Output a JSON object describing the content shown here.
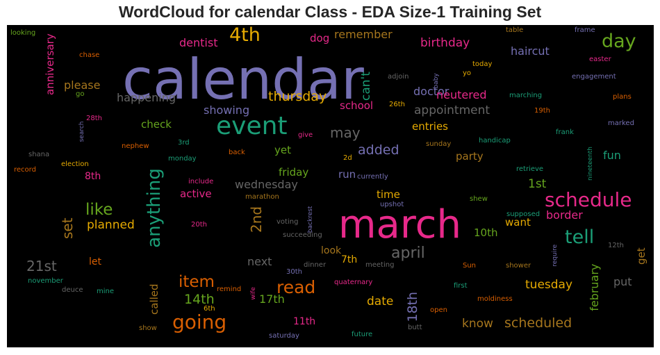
{
  "chart_data": {
    "type": "wordcloud",
    "title": "WordCloud for calendar Class - EDA Size-1 Training Set",
    "background": "#000000",
    "palette": [
      "#7570b3",
      "#e7298a",
      "#1b9e77",
      "#d95f02",
      "#66a61e",
      "#e6ab02",
      "#a6761d",
      "#666666"
    ],
    "words": [
      {
        "text": "calendar",
        "weight": 1.0,
        "color": "#7570b3"
      },
      {
        "text": "march",
        "weight": 0.78,
        "color": "#e7298a"
      },
      {
        "text": "event",
        "weight": 0.55,
        "color": "#1b9e77"
      },
      {
        "text": "schedule",
        "weight": 0.46,
        "color": "#e7298a"
      },
      {
        "text": "going",
        "weight": 0.45,
        "color": "#d95f02"
      },
      {
        "text": "anything",
        "weight": 0.4,
        "color": "#1b9e77"
      },
      {
        "text": "4th",
        "weight": 0.42,
        "color": "#e6ab02"
      },
      {
        "text": "day",
        "weight": 0.4,
        "color": "#66a61e"
      },
      {
        "text": "tell",
        "weight": 0.42,
        "color": "#1b9e77"
      },
      {
        "text": "read",
        "weight": 0.38,
        "color": "#d95f02"
      },
      {
        "text": "item",
        "weight": 0.36,
        "color": "#d95f02"
      },
      {
        "text": "like",
        "weight": 0.34,
        "color": "#66a61e"
      },
      {
        "text": "april",
        "weight": 0.33,
        "color": "#666666"
      },
      {
        "text": "2nd",
        "weight": 0.3,
        "color": "#a6761d"
      },
      {
        "text": "may",
        "weight": 0.3,
        "color": "#666666"
      },
      {
        "text": "scheduled",
        "weight": 0.3,
        "color": "#a6761d"
      },
      {
        "text": "21st",
        "weight": 0.28,
        "color": "#666666"
      },
      {
        "text": "set",
        "weight": 0.28,
        "color": "#a6761d"
      },
      {
        "text": "added",
        "weight": 0.28,
        "color": "#7570b3"
      },
      {
        "text": "thursday",
        "weight": 0.28,
        "color": "#e6ab02"
      },
      {
        "text": "14th",
        "weight": 0.27,
        "color": "#66a61e"
      },
      {
        "text": "18th",
        "weight": 0.27,
        "color": "#7570b3"
      },
      {
        "text": "tuesday",
        "weight": 0.26,
        "color": "#e6ab02"
      },
      {
        "text": "birthday",
        "weight": 0.26,
        "color": "#e7298a"
      },
      {
        "text": "appointment",
        "weight": 0.25,
        "color": "#666666"
      },
      {
        "text": "know",
        "weight": 0.25,
        "color": "#a6761d"
      },
      {
        "text": "february",
        "weight": 0.25,
        "color": "#66a61e"
      },
      {
        "text": "planned",
        "weight": 0.25,
        "color": "#e6ab02"
      },
      {
        "text": "17th",
        "weight": 0.24,
        "color": "#66a61e"
      },
      {
        "text": "happening",
        "weight": 0.24,
        "color": "#666666"
      },
      {
        "text": "date",
        "weight": 0.24,
        "color": "#e6ab02"
      },
      {
        "text": "wednesday",
        "weight": 0.24,
        "color": "#666666"
      },
      {
        "text": "haircut",
        "weight": 0.24,
        "color": "#7570b3"
      },
      {
        "text": "remember",
        "weight": 0.24,
        "color": "#a6761d"
      },
      {
        "text": "showing",
        "weight": 0.24,
        "color": "#7570b3"
      },
      {
        "text": "dentist",
        "weight": 0.23,
        "color": "#e7298a"
      },
      {
        "text": "doctor",
        "weight": 0.23,
        "color": "#7570b3"
      },
      {
        "text": "neutered",
        "weight": 0.23,
        "color": "#e7298a"
      },
      {
        "text": "can't",
        "weight": 0.23,
        "color": "#1b9e77"
      },
      {
        "text": "anniversary",
        "weight": 0.23,
        "color": "#e7298a"
      },
      {
        "text": "please",
        "weight": 0.23,
        "color": "#a6761d"
      },
      {
        "text": "called",
        "weight": 0.22,
        "color": "#a6761d"
      },
      {
        "text": "next",
        "weight": 0.22,
        "color": "#666666"
      },
      {
        "text": "put",
        "weight": 0.22,
        "color": "#666666"
      },
      {
        "text": "border",
        "weight": 0.22,
        "color": "#e7298a"
      },
      {
        "text": "1st",
        "weight": 0.22,
        "color": "#66a61e"
      },
      {
        "text": "fun",
        "weight": 0.22,
        "color": "#1b9e77"
      },
      {
        "text": "entries",
        "weight": 0.22,
        "color": "#e6ab02"
      },
      {
        "text": "dog",
        "weight": 0.22,
        "color": "#e7298a"
      },
      {
        "text": "check",
        "weight": 0.21,
        "color": "#66a61e"
      },
      {
        "text": "active",
        "weight": 0.21,
        "color": "#e7298a"
      },
      {
        "text": "want",
        "weight": 0.21,
        "color": "#e6ab02"
      },
      {
        "text": "10th",
        "weight": 0.21,
        "color": "#66a61e"
      },
      {
        "text": "get",
        "weight": 0.21,
        "color": "#a6761d"
      },
      {
        "text": "school",
        "weight": 0.21,
        "color": "#e7298a"
      },
      {
        "text": "friday",
        "weight": 0.21,
        "color": "#66a61e"
      },
      {
        "text": "yet",
        "weight": 0.21,
        "color": "#66a61e"
      },
      {
        "text": "party",
        "weight": 0.21,
        "color": "#a6761d"
      },
      {
        "text": "run",
        "weight": 0.21,
        "color": "#7570b3"
      },
      {
        "text": "time",
        "weight": 0.2,
        "color": "#e6ab02"
      },
      {
        "text": "look",
        "weight": 0.2,
        "color": "#a6761d"
      },
      {
        "text": "7th",
        "weight": 0.2,
        "color": "#e6ab02"
      },
      {
        "text": "11th",
        "weight": 0.2,
        "color": "#e7298a"
      },
      {
        "text": "8th",
        "weight": 0.2,
        "color": "#e7298a"
      },
      {
        "text": "let",
        "weight": 0.2,
        "color": "#d95f02"
      },
      {
        "text": "looking",
        "weight": 0.12,
        "color": "#66a61e"
      },
      {
        "text": "chase",
        "weight": 0.12,
        "color": "#d95f02"
      },
      {
        "text": "go",
        "weight": 0.12,
        "color": "#66a61e"
      },
      {
        "text": "28th",
        "weight": 0.12,
        "color": "#e7298a"
      },
      {
        "text": "search",
        "weight": 0.12,
        "color": "#7570b3"
      },
      {
        "text": "shana",
        "weight": 0.12,
        "color": "#666666"
      },
      {
        "text": "record",
        "weight": 0.12,
        "color": "#d95f02"
      },
      {
        "text": "nephew",
        "weight": 0.12,
        "color": "#d95f02"
      },
      {
        "text": "3rd",
        "weight": 0.12,
        "color": "#1b9e77"
      },
      {
        "text": "election",
        "weight": 0.12,
        "color": "#e6ab02"
      },
      {
        "text": "monday",
        "weight": 0.12,
        "color": "#1b9e77"
      },
      {
        "text": "give",
        "weight": 0.12,
        "color": "#e7298a"
      },
      {
        "text": "back",
        "weight": 0.12,
        "color": "#d95f02"
      },
      {
        "text": "include",
        "weight": 0.12,
        "color": "#e7298a"
      },
      {
        "text": "marathon",
        "weight": 0.12,
        "color": "#a6761d"
      },
      {
        "text": "backrest",
        "weight": 0.12,
        "color": "#7570b3"
      },
      {
        "text": "20th",
        "weight": 0.12,
        "color": "#e7298a"
      },
      {
        "text": "voting",
        "weight": 0.12,
        "color": "#666666"
      },
      {
        "text": "succeeding",
        "weight": 0.12,
        "color": "#666666"
      },
      {
        "text": "november",
        "weight": 0.12,
        "color": "#1b9e77"
      },
      {
        "text": "deuce",
        "weight": 0.12,
        "color": "#666666"
      },
      {
        "text": "mine",
        "weight": 0.12,
        "color": "#1b9e77"
      },
      {
        "text": "remind",
        "weight": 0.12,
        "color": "#d95f02"
      },
      {
        "text": "wife",
        "weight": 0.12,
        "color": "#e7298a"
      },
      {
        "text": "6th",
        "weight": 0.12,
        "color": "#e6ab02"
      },
      {
        "text": "show",
        "weight": 0.12,
        "color": "#a6761d"
      },
      {
        "text": "30th",
        "weight": 0.12,
        "color": "#7570b3"
      },
      {
        "text": "dinner",
        "weight": 0.12,
        "color": "#666666"
      },
      {
        "text": "meeting",
        "weight": 0.12,
        "color": "#666666"
      },
      {
        "text": "quaternary",
        "weight": 0.12,
        "color": "#e7298a"
      },
      {
        "text": "saturday",
        "weight": 0.12,
        "color": "#7570b3"
      },
      {
        "text": "future",
        "weight": 0.12,
        "color": "#1b9e77"
      },
      {
        "text": "butt",
        "weight": 0.12,
        "color": "#666666"
      },
      {
        "text": "open",
        "weight": 0.12,
        "color": "#d95f02"
      },
      {
        "text": "first",
        "weight": 0.12,
        "color": "#1b9e77"
      },
      {
        "text": "moldiness",
        "weight": 0.12,
        "color": "#d95f02"
      },
      {
        "text": "Sun",
        "weight": 0.12,
        "color": "#d95f02"
      },
      {
        "text": "shower",
        "weight": 0.12,
        "color": "#a6761d"
      },
      {
        "text": "require",
        "weight": 0.12,
        "color": "#7570b3"
      },
      {
        "text": "12th",
        "weight": 0.12,
        "color": "#666666"
      },
      {
        "text": "shew",
        "weight": 0.12,
        "color": "#66a61e"
      },
      {
        "text": "supposed",
        "weight": 0.12,
        "color": "#1b9e77"
      },
      {
        "text": "upshot",
        "weight": 0.12,
        "color": "#7570b3"
      },
      {
        "text": "currently",
        "weight": 0.12,
        "color": "#7570b3"
      },
      {
        "text": "2d",
        "weight": 0.12,
        "color": "#e6ab02"
      },
      {
        "text": "retrieve",
        "weight": 0.12,
        "color": "#1b9e77"
      },
      {
        "text": "nineteenth",
        "weight": 0.12,
        "color": "#1b9e77"
      },
      {
        "text": "handicap",
        "weight": 0.12,
        "color": "#1b9e77"
      },
      {
        "text": "sunday",
        "weight": 0.12,
        "color": "#a6761d"
      },
      {
        "text": "frank",
        "weight": 0.12,
        "color": "#1b9e77"
      },
      {
        "text": "marked",
        "weight": 0.12,
        "color": "#7570b3"
      },
      {
        "text": "19th",
        "weight": 0.12,
        "color": "#d95f02"
      },
      {
        "text": "plans",
        "weight": 0.12,
        "color": "#d95f02"
      },
      {
        "text": "marching",
        "weight": 0.12,
        "color": "#1b9e77"
      },
      {
        "text": "engagement",
        "weight": 0.12,
        "color": "#7570b3"
      },
      {
        "text": "easter",
        "weight": 0.12,
        "color": "#e7298a"
      },
      {
        "text": "frame",
        "weight": 0.12,
        "color": "#7570b3"
      },
      {
        "text": "table",
        "weight": 0.12,
        "color": "#a6761d"
      },
      {
        "text": "today",
        "weight": 0.12,
        "color": "#e6ab02"
      },
      {
        "text": "yo",
        "weight": 0.12,
        "color": "#e6ab02"
      },
      {
        "text": "baby",
        "weight": 0.12,
        "color": "#7570b3"
      },
      {
        "text": "adjoin",
        "weight": 0.12,
        "color": "#666666"
      },
      {
        "text": "26th",
        "weight": 0.12,
        "color": "#e6ab02"
      }
    ]
  }
}
